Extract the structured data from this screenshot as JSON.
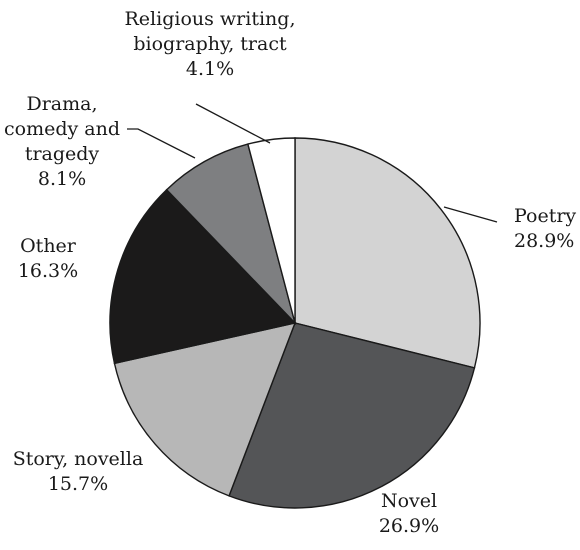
{
  "chart_data": {
    "type": "pie",
    "title": "",
    "slices": [
      {
        "name": "Poetry",
        "label_lines": [
          "Poetry",
          "28.9%"
        ],
        "value": 28.9,
        "color": "#d3d3d3"
      },
      {
        "name": "Novel",
        "label_lines": [
          "Novel",
          "26.9%"
        ],
        "value": 26.9,
        "color": "#545557"
      },
      {
        "name": "Story, novella",
        "label_lines": [
          "Story, novella",
          "15.7%"
        ],
        "value": 15.7,
        "color": "#b7b7b7"
      },
      {
        "name": "Other",
        "label_lines": [
          "Other",
          "16.3%"
        ],
        "value": 16.3,
        "color": "#1b1a1a"
      },
      {
        "name": "Drama, comedy and tragedy",
        "label_lines": [
          "Drama,",
          "comedy and",
          "tragedy",
          "8.1%"
        ],
        "value": 8.1,
        "color": "#7e7f81"
      },
      {
        "name": "Religious writing, biography, tract",
        "label_lines": [
          "Religious writing,",
          "biography, tract",
          "4.1%"
        ],
        "value": 4.1,
        "color": "#ffffff"
      }
    ],
    "start": "12 o'clock",
    "direction": "clockwise",
    "legend": "none"
  }
}
